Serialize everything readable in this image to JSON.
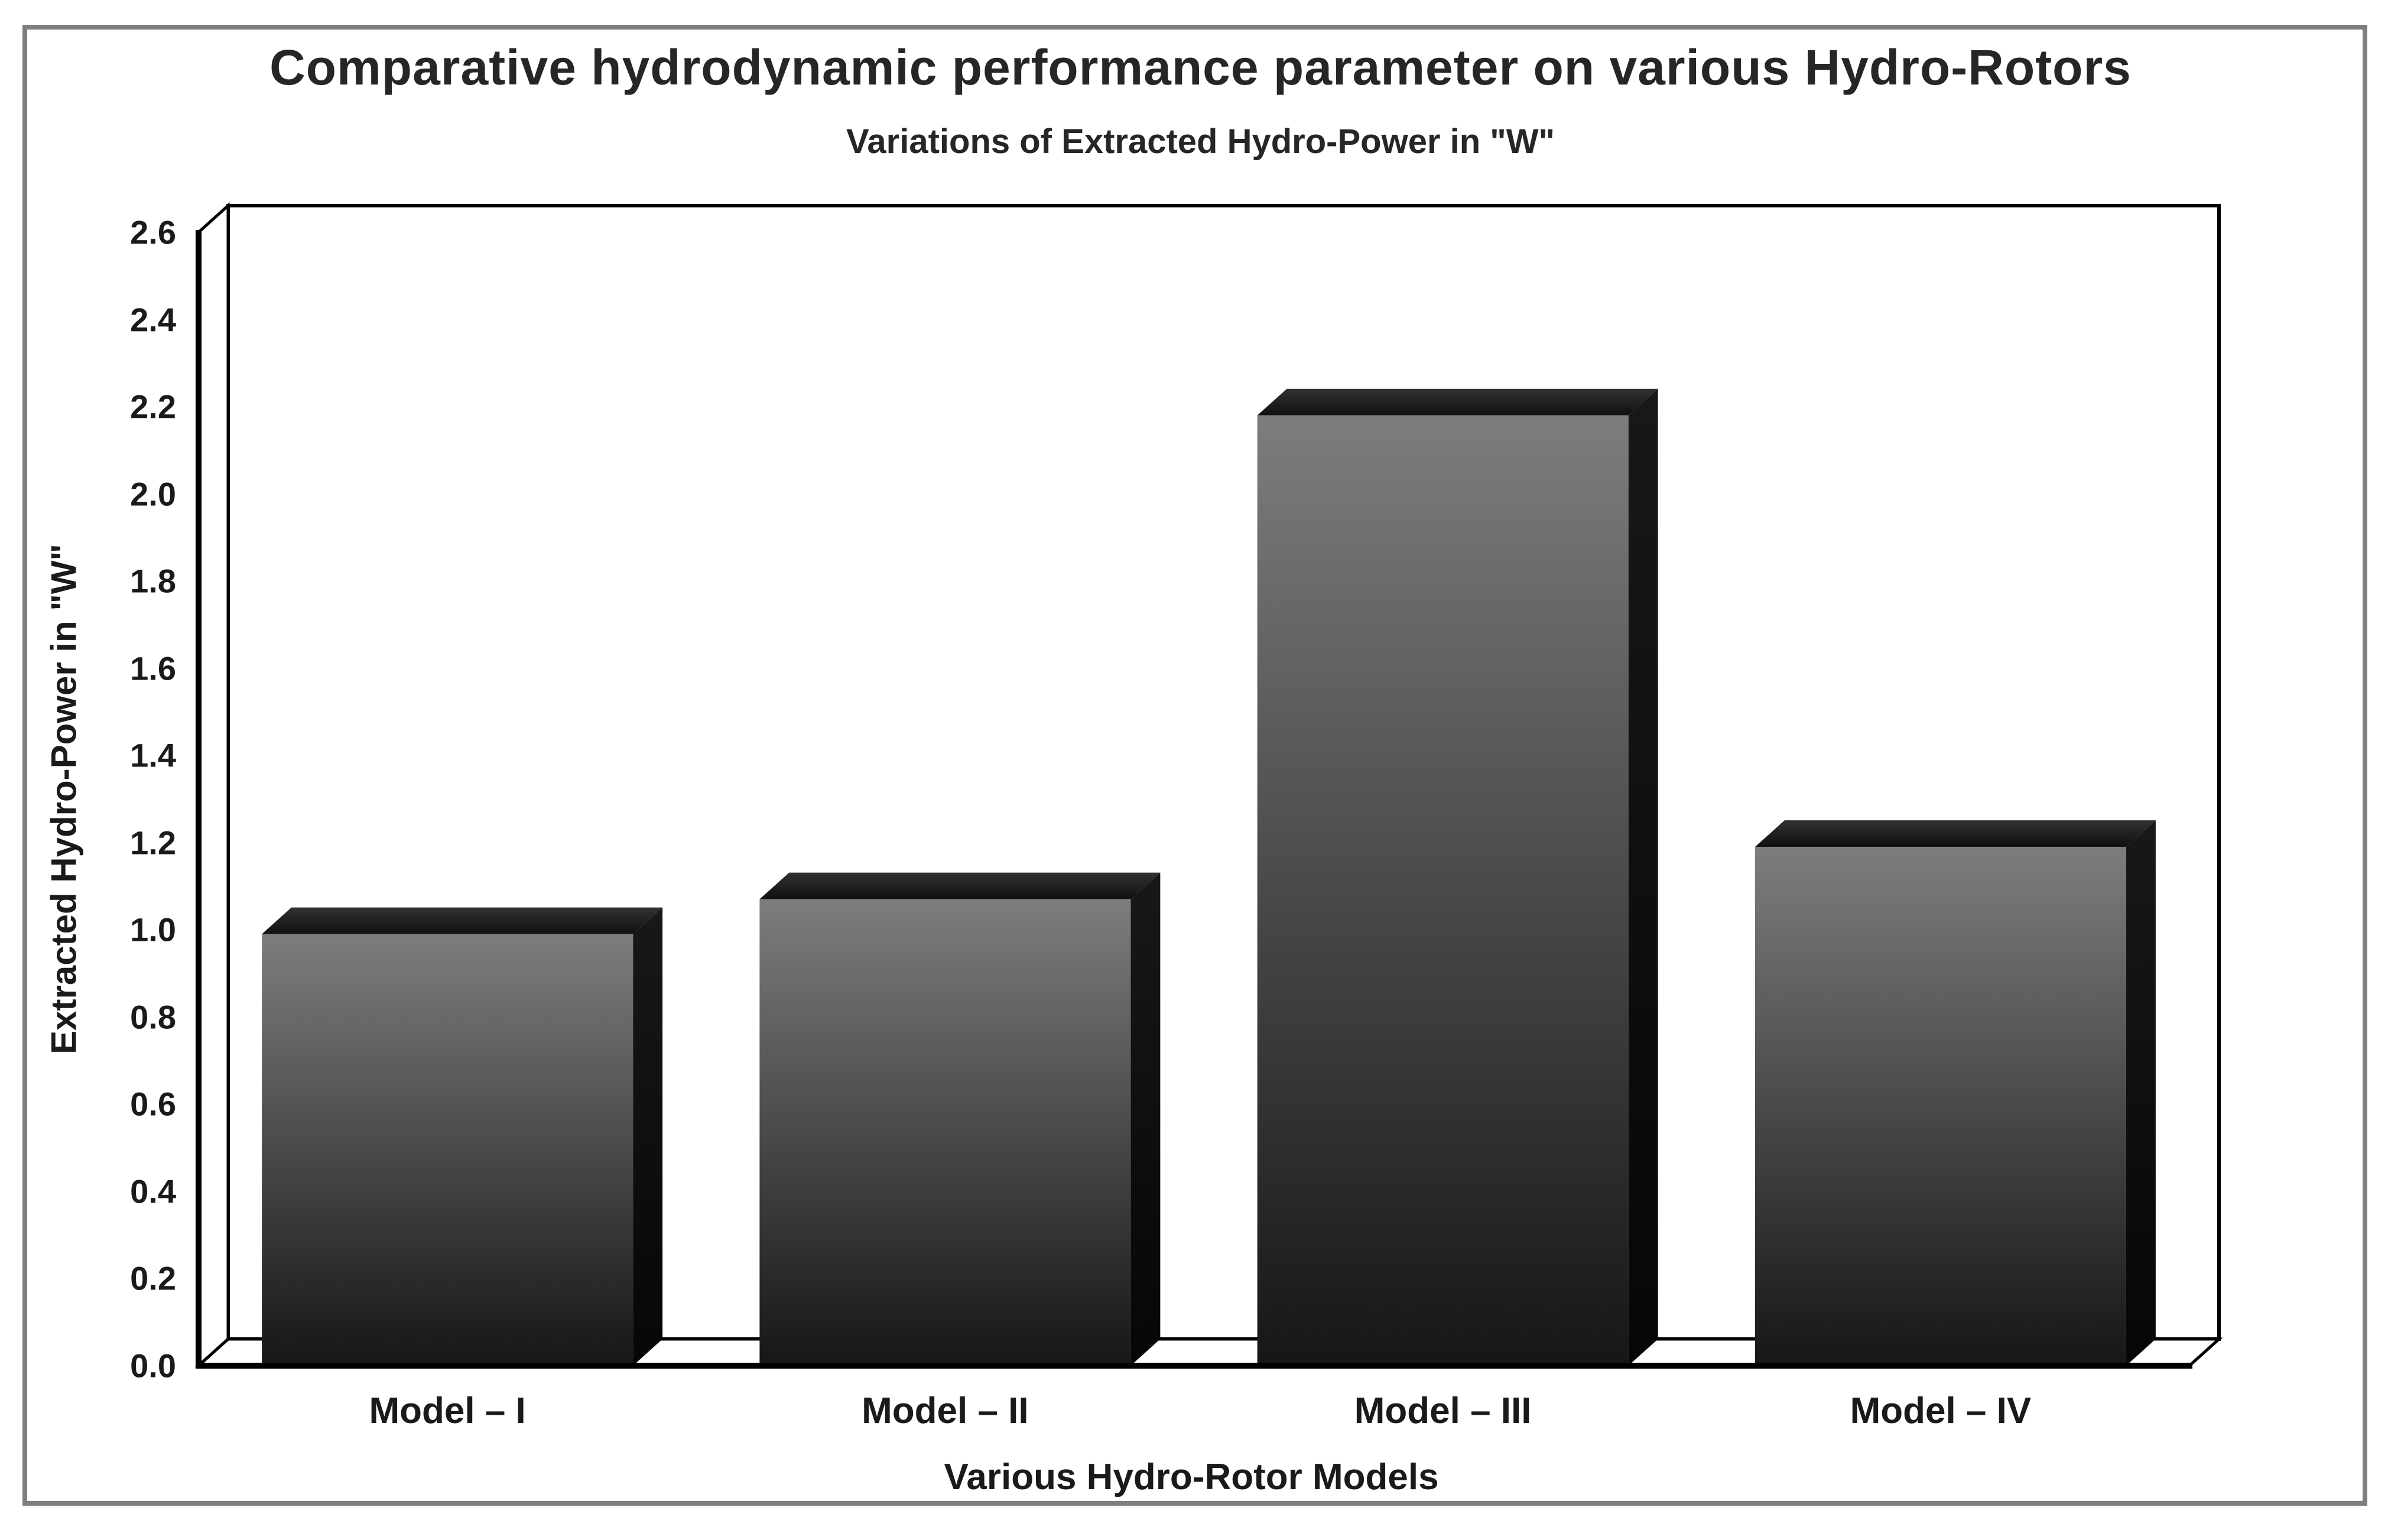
{
  "window": {
    "background": "#ffffff",
    "border_color": "#7f7f7f"
  },
  "chart_data": {
    "type": "bar",
    "style": "3d-column",
    "title": "Comparative hydrodynamic performance parameter on various Hydro-Rotors",
    "subtitle": "Variations of Extracted Hydro-Power in \"W\"",
    "xlabel": "Various Hydro-Rotor Models",
    "ylabel": "Extracted Hydro-Power in \"W\"",
    "categories": [
      "Model – I",
      "Model – II",
      "Model – III",
      "Model – IV"
    ],
    "values": [
      0.99,
      1.07,
      2.18,
      1.19
    ],
    "ylim": [
      0.0,
      2.6
    ],
    "ytick_step": 0.2,
    "yticks": [
      "0.0",
      "0.2",
      "0.4",
      "0.6",
      "0.8",
      "1.0",
      "1.2",
      "1.4",
      "1.6",
      "1.8",
      "2.0",
      "2.2",
      "2.4",
      "2.6"
    ],
    "grid": false,
    "legend": false,
    "text_color": "#262626",
    "axis_line_color": "#000000",
    "bar_colors": {
      "front_top": "#7d7d7d",
      "front_bottom": "#161616",
      "top_back": "#323232",
      "top_front": "#101010",
      "side_top": "#181818",
      "side_bottom": "#060606"
    }
  }
}
